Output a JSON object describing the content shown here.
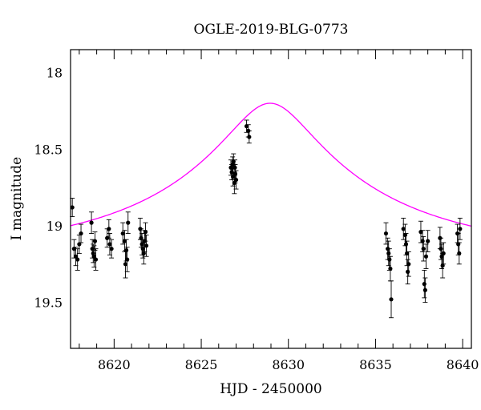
{
  "chart_data": {
    "type": "scatter",
    "title": "OGLE-2019-BLG-0773",
    "xlabel": "HJD - 2450000",
    "ylabel": "I magnitude",
    "xlim": [
      8617.5,
      8640.5
    ],
    "ylim": [
      19.8,
      17.85
    ],
    "y_inverted": true,
    "x_ticks": [
      8620,
      8625,
      8630,
      8635,
      8640
    ],
    "y_ticks": [
      18,
      18.5,
      19,
      19.5
    ],
    "grid": false,
    "model_color": "#ff00ff",
    "point_color": "#000000",
    "model": {
      "t0": 8628.95,
      "min_mag": 18.2,
      "baseline_mag": 19.18,
      "tE": 12.0,
      "u0": 0.19
    },
    "series": [
      {
        "x": [
          8617.6,
          8617.7,
          8617.8,
          8617.9,
          8618.0,
          8618.1,
          8618.7,
          8618.75,
          8618.8,
          8618.85,
          8618.9,
          8618.95,
          8619.6,
          8619.7,
          8619.75,
          8619.85,
          8620.5,
          8620.6,
          8620.65,
          8620.7,
          8620.75,
          8620.8,
          8621.5,
          8621.55,
          8621.6,
          8621.65,
          8621.7,
          8621.75,
          8621.8,
          8621.85,
          8626.7,
          8626.75,
          8626.8,
          8626.82,
          8626.85,
          8626.9,
          8626.93,
          8626.95,
          8627.0,
          8627.6,
          8627.7,
          8627.75,
          8635.6,
          8635.7,
          8635.75,
          8635.8,
          8635.85,
          8635.9,
          8636.6,
          8636.7,
          8636.75,
          8636.8,
          8636.85,
          8636.9,
          8637.6,
          8637.7,
          8637.75,
          8637.8,
          8637.85,
          8637.9,
          8638.0,
          8638.7,
          8638.75,
          8638.8,
          8638.85,
          8638.9,
          8639.7,
          8639.75,
          8639.8,
          8639.85
        ],
        "y": [
          18.88,
          19.15,
          19.2,
          19.22,
          19.12,
          19.05,
          18.98,
          19.15,
          19.18,
          19.2,
          19.1,
          19.22,
          19.08,
          19.02,
          19.12,
          19.15,
          19.05,
          19.1,
          19.25,
          19.16,
          19.22,
          18.98,
          19.02,
          19.08,
          19.12,
          19.15,
          19.18,
          19.1,
          19.04,
          19.13,
          18.62,
          18.65,
          18.6,
          18.68,
          18.58,
          18.72,
          18.62,
          18.66,
          18.7,
          18.35,
          18.38,
          18.42,
          19.05,
          19.15,
          19.18,
          19.22,
          19.28,
          19.48,
          19.02,
          19.06,
          19.12,
          19.18,
          19.3,
          19.25,
          19.04,
          19.1,
          19.15,
          19.38,
          19.42,
          19.2,
          19.1,
          19.08,
          19.15,
          19.2,
          19.26,
          19.18,
          19.05,
          19.12,
          19.18,
          19.02
        ],
        "err": [
          0.06,
          0.06,
          0.06,
          0.07,
          0.06,
          0.06,
          0.07,
          0.06,
          0.06,
          0.07,
          0.06,
          0.07,
          0.06,
          0.06,
          0.07,
          0.06,
          0.07,
          0.07,
          0.09,
          0.07,
          0.08,
          0.07,
          0.07,
          0.06,
          0.07,
          0.06,
          0.07,
          0.07,
          0.06,
          0.07,
          0.05,
          0.05,
          0.05,
          0.06,
          0.05,
          0.07,
          0.05,
          0.06,
          0.06,
          0.04,
          0.04,
          0.04,
          0.07,
          0.07,
          0.08,
          0.07,
          0.08,
          0.12,
          0.07,
          0.07,
          0.07,
          0.08,
          0.08,
          0.08,
          0.07,
          0.07,
          0.08,
          0.09,
          0.08,
          0.08,
          0.07,
          0.07,
          0.07,
          0.08,
          0.08,
          0.07,
          0.06,
          0.07,
          0.07,
          0.07
        ]
      }
    ]
  }
}
